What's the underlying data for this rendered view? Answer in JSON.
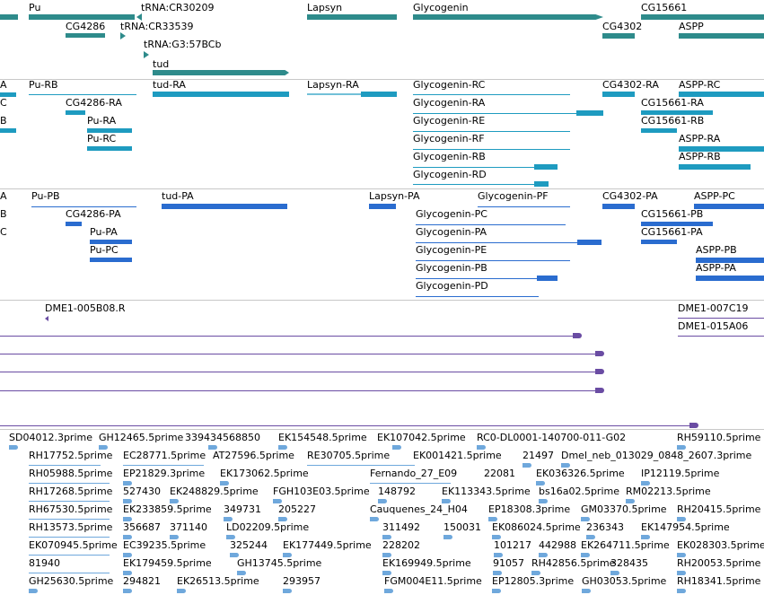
{
  "colors": {
    "gene": "#2e8b8b",
    "rna": "#1e9bc0",
    "protein": "#2a6ccf",
    "clone": "#6a4ca3",
    "est": "#6fa8dc",
    "separator": "#c8c8c8"
  },
  "track_genes": {
    "labels": [
      "Pu",
      "tRNA:CR30209",
      "Lapsyn",
      "Glycogenin",
      "CG15661",
      "CG4286",
      "tRNA:CR33539",
      "CG4302",
      "ASPP",
      "tRNA:G3:57BCb",
      "tud"
    ]
  },
  "track_rna": {
    "labels": [
      "A",
      "Pu-RB",
      "tud-RA",
      "Lapsyn-RA",
      "Glycogenin-RC",
      "CG4302-RA",
      "ASPP-RC",
      "C",
      "CG4286-RA",
      "Glycogenin-RA",
      "CG15661-RA",
      "B",
      "Pu-RA",
      "Glycogenin-RE",
      "CG15661-RB",
      "Pu-RC",
      "Glycogenin-RF",
      "ASPP-RA",
      "Glycogenin-RB",
      "ASPP-RB",
      "Glycogenin-RD"
    ]
  },
  "track_protein": {
    "labels": [
      "A",
      "Pu-PB",
      "tud-PA",
      "Lapsyn-PA",
      "Glycogenin-PF",
      "CG4302-PA",
      "ASPP-PC",
      "B",
      "CG4286-PA",
      "Glycogenin-PC",
      "CG15661-PB",
      "C",
      "Pu-PA",
      "Glycogenin-PA",
      "CG15661-PA",
      "Pu-PC",
      "Glycogenin-PE",
      "ASPP-PB",
      "Glycogenin-PB",
      "ASPP-PA",
      "Glycogenin-PD"
    ]
  },
  "track_clones": {
    "labels": [
      "DME1-005B08.R",
      "DME1-007C19",
      "DME1-015A06"
    ]
  },
  "track_est": {
    "labels": [
      "SD04012.3prime",
      "GH12465.5prime",
      "339434568850",
      "EK154548.5prime",
      "EK107042.5prime",
      "RC0-DL0001-140700-011-G02",
      "RH59110.5prime",
      "RH17752.5prime",
      "EC28771.5prime",
      "AT27596.5prime",
      "RE30705.5prime",
      "EK001421.5prime",
      "21497",
      "Dmel_neb_013029_0848_2607.3prime",
      "RH05988.5prime",
      "EP21829.3prime",
      "EK173062.5prime",
      "Fernando_27_E09",
      "22081",
      "EK036326.5prime",
      "IP12119.5prime",
      "RH17268.5prime",
      "527430",
      "EK248829.5prime",
      "FGH103E03.5prime",
      "148792",
      "EK113343.5prime",
      "bs16a02.5prime",
      "RM02213.5prime",
      "RH67530.5prime",
      "EK233859.5prime",
      "349731",
      "205227",
      "Cauquenes_24_H04",
      "EP18308.3prime",
      "GM03370.5prime",
      "RH20415.5prime",
      "RH13573.5prime",
      "356687",
      "371140",
      "LD02209.5prime",
      "311492",
      "150031",
      "EK086024.5prime",
      "236343",
      "EK147954.5prime",
      "EK070945.5prime",
      "EC39235.5prime",
      "325244",
      "EK177449.5prime",
      "228202",
      "101217",
      "442988",
      "EK264711.5prime",
      "EK028303.5prime",
      "81940",
      "EK179459.5prime",
      "GH13745.5prime",
      "EK169949.5prime",
      "91057",
      "RH42856.5prime",
      "328435",
      "RH20053.5prime",
      "GH25630.5prime",
      "294821",
      "EK26513.5prime",
      "293957",
      "FGM004E11.5prime",
      "EP12805.3prime",
      "GH03053.5prime",
      "RH18341.5prime"
    ]
  }
}
